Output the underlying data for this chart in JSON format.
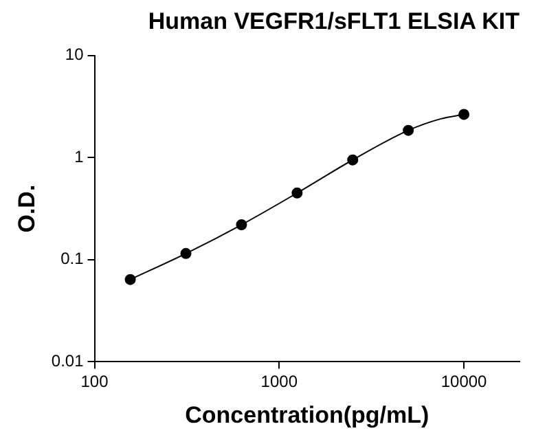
{
  "chart_data": {
    "type": "scatter",
    "title": "Human VEGFR1/sFLT1 ELSIA KIT",
    "xlabel": "Concentration(pg/mL)",
    "ylabel": "O.D.",
    "log": "xy",
    "xlim": [
      100,
      20000
    ],
    "xticks": [
      100,
      1000,
      10000
    ],
    "ylim": [
      0.01,
      10
    ],
    "yticks": [
      0.01,
      0.1,
      1,
      10
    ],
    "grid": false,
    "legend": false,
    "marker": "circle",
    "x": [
      156.25,
      312.5,
      625,
      1250,
      2500,
      5000,
      10000
    ],
    "series": [
      {
        "type": "scatter",
        "color": "#000000",
        "values": [
          0.064,
          0.115,
          0.22,
          0.45,
          0.95,
          1.85,
          2.65
        ]
      },
      {
        "type": "line",
        "color": "#000000",
        "marker": "none",
        "line_style": "solid",
        "x": [
          156.25,
          312.5,
          625,
          1250,
          2500,
          5000,
          7500,
          10000
        ],
        "values": [
          0.064,
          0.115,
          0.22,
          0.45,
          0.95,
          1.85,
          2.4,
          2.65
        ]
      }
    ]
  }
}
